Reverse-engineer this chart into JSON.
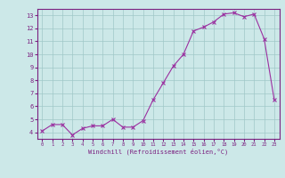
{
  "x": [
    0,
    1,
    2,
    3,
    4,
    5,
    6,
    7,
    8,
    9,
    10,
    11,
    12,
    13,
    14,
    15,
    16,
    17,
    18,
    19,
    20,
    21,
    22,
    23
  ],
  "y": [
    4.1,
    4.6,
    4.6,
    3.8,
    4.3,
    4.5,
    4.5,
    5.0,
    4.4,
    4.4,
    4.9,
    6.5,
    7.8,
    9.1,
    10.0,
    11.8,
    12.1,
    12.5,
    13.1,
    13.2,
    12.9,
    13.1,
    11.2,
    6.5
  ],
  "xlabel": "Windchill (Refroidissement éolien,°C)",
  "ylim": [
    3.5,
    13.5
  ],
  "xlim": [
    -0.5,
    23.5
  ],
  "yticks": [
    4,
    5,
    6,
    7,
    8,
    9,
    10,
    11,
    12,
    13
  ],
  "xticks": [
    0,
    1,
    2,
    3,
    4,
    5,
    6,
    7,
    8,
    9,
    10,
    11,
    12,
    13,
    14,
    15,
    16,
    17,
    18,
    19,
    20,
    21,
    22,
    23
  ],
  "line_color": "#9b30a0",
  "marker_color": "#9b30a0",
  "bg_color": "#cce8e8",
  "grid_color": "#a0c8c8",
  "axis_color": "#7b2080",
  "tick_label_color": "#7b2080",
  "xlabel_color": "#7b2080"
}
